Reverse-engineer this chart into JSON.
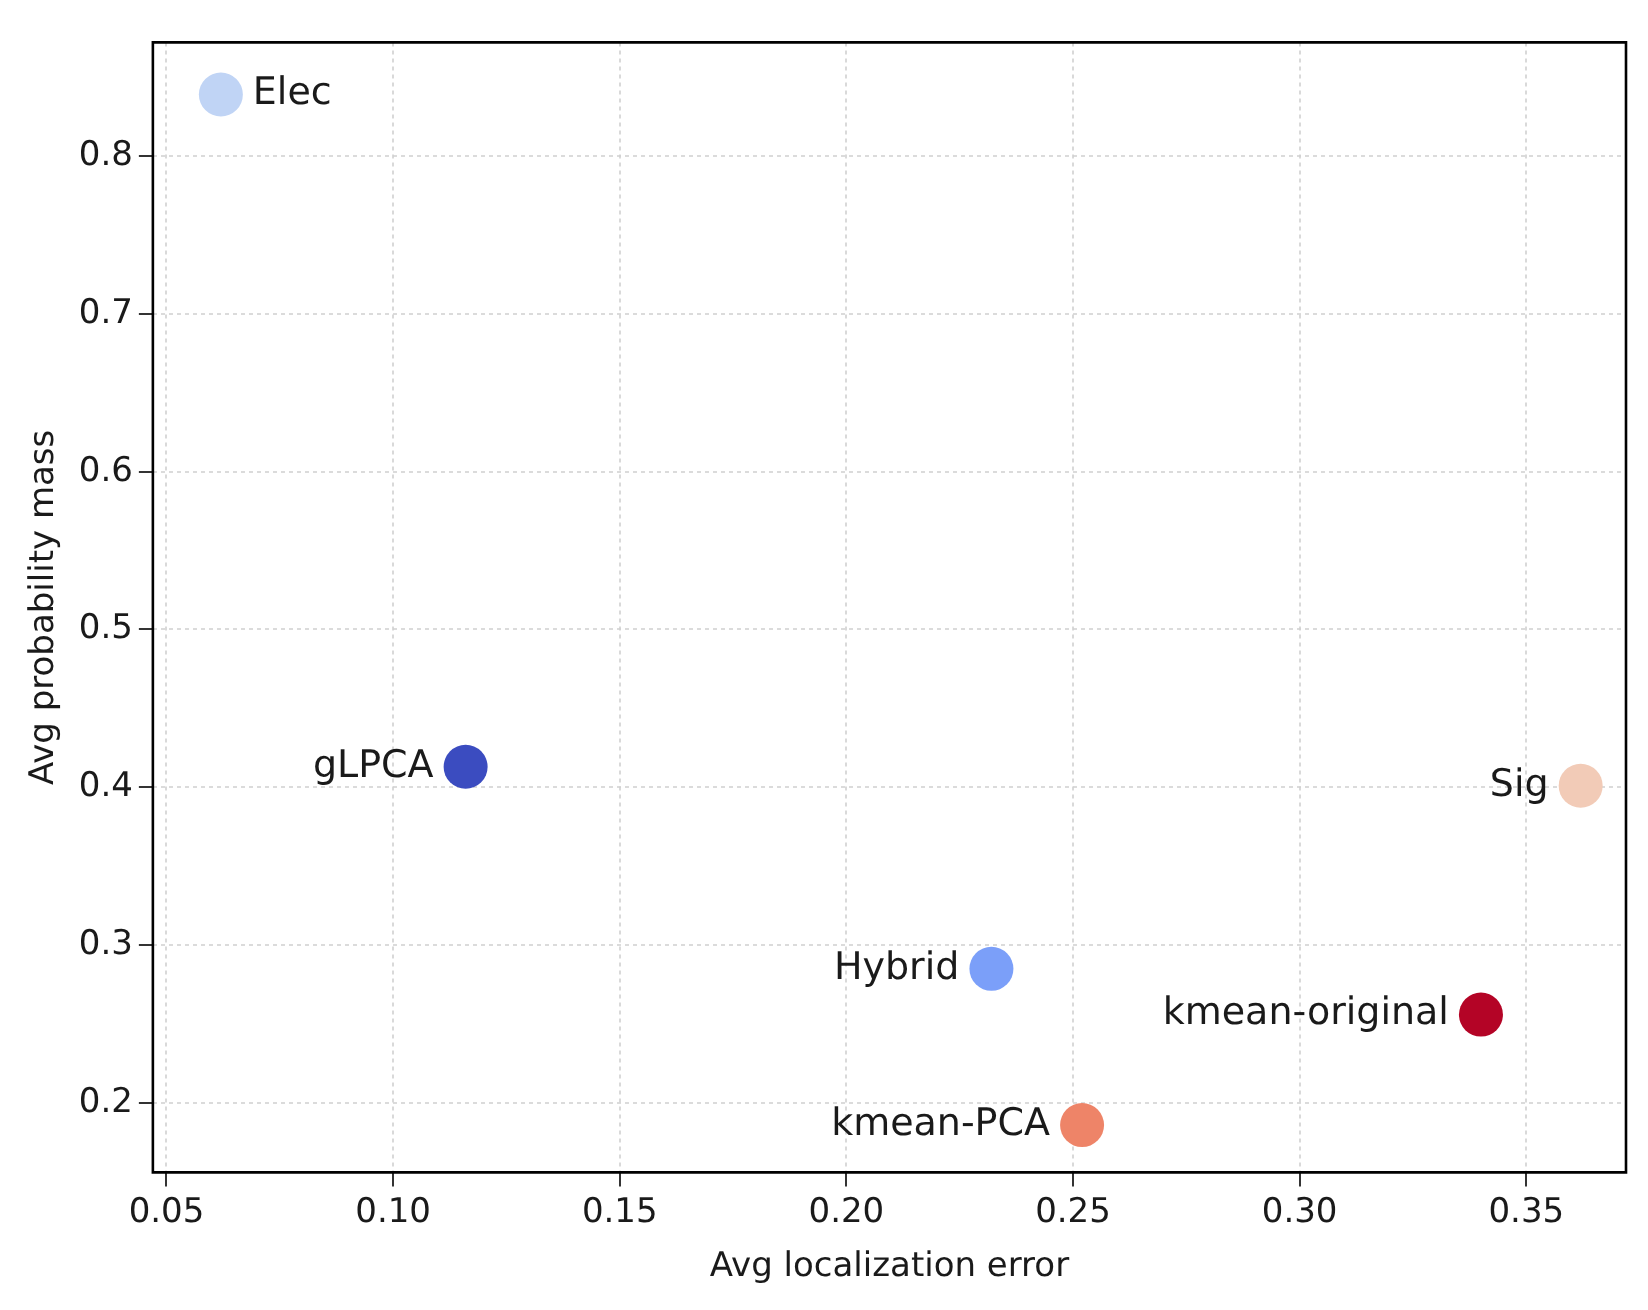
{
  "chart_data": {
    "type": "scatter",
    "xlabel": "Avg localization error",
    "ylabel": "Avg probability mass",
    "xlim": [
      0.047,
      0.372
    ],
    "xticks": [
      {
        "value": 0.05,
        "label": "0.05"
      },
      {
        "value": 0.1,
        "label": "0.10"
      },
      {
        "value": 0.15,
        "label": "0.15"
      },
      {
        "value": 0.2,
        "label": "0.20"
      },
      {
        "value": 0.25,
        "label": "0.25"
      },
      {
        "value": 0.3,
        "label": "0.30"
      },
      {
        "value": 0.35,
        "label": "0.35"
      }
    ],
    "ylim": [
      0.156,
      0.872
    ],
    "yticks": [
      0.2,
      0.3,
      0.4,
      0.5,
      0.6,
      0.7,
      0.8
    ],
    "grid": true,
    "legend": false,
    "marker": "circle",
    "series": [
      {
        "name": "Elec",
        "color": "#c0d4f5",
        "x": [
          0.062
        ],
        "values": [
          0.839
        ]
      },
      {
        "name": "gLPCA",
        "color": "#3b4cc0",
        "x": [
          0.116
        ],
        "values": [
          0.413
        ]
      },
      {
        "name": "Hybrid",
        "color": "#7b9ff9",
        "x": [
          0.232
        ],
        "values": [
          0.285
        ]
      },
      {
        "name": "kmean-PCA",
        "color": "#ee8468",
        "x": [
          0.252
        ],
        "values": [
          0.186
        ]
      },
      {
        "name": "Sig",
        "color": "#f2cbb7",
        "x": [
          0.362
        ],
        "values": [
          0.401
        ]
      },
      {
        "name": "kmean-original",
        "color": "#b40426",
        "x": [
          0.34
        ],
        "values": [
          0.256
        ]
      }
    ]
  }
}
